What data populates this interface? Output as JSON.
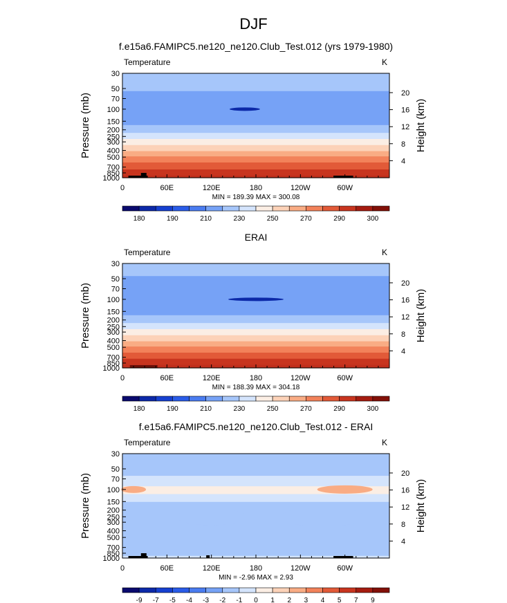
{
  "figure": {
    "title": "DJF"
  },
  "colors": {
    "main_scale": [
      "#0a0a6e",
      "#0c29a8",
      "#1640d0",
      "#2a5ce8",
      "#4a7cf0",
      "#76a2f6",
      "#a6c6fa",
      "#d4e4fc",
      "#fbeee4",
      "#fcd2b8",
      "#f9ac84",
      "#f2825a",
      "#e25a38",
      "#c8351f",
      "#a51c10",
      "#821008"
    ],
    "diff_scale": [
      "#0a0a6e",
      "#0c29a8",
      "#1640d0",
      "#2a5ce8",
      "#4a7cf0",
      "#76a2f6",
      "#a6c6fa",
      "#d4e4fc",
      "#fbeee4",
      "#fcd2b8",
      "#f9ac84",
      "#f2825a",
      "#e25a38",
      "#c8351f",
      "#a51c10",
      "#821008"
    ],
    "topography": "#000000"
  },
  "chart_data": [
    {
      "type": "heatmap",
      "title": "f.e15a6.FAMIPC5.ne120_ne120.Club_Test.012 (yrs 1979-1980)",
      "left_label": "Temperature",
      "right_label": "K",
      "ylabel": "Pressure (mb)",
      "y2label": "Height (km)",
      "y_ticks": [
        30,
        50,
        70,
        100,
        150,
        200,
        250,
        300,
        400,
        500,
        700,
        850,
        1000
      ],
      "y_scale": "log",
      "ylim": [
        1000,
        30
      ],
      "y2_ticks": [
        20,
        16,
        12,
        8,
        4
      ],
      "x_ticks": [
        "0",
        "60E",
        "120E",
        "180",
        "120W",
        "60W"
      ],
      "x_values": [
        0,
        60,
        120,
        180,
        240,
        300
      ],
      "xlim": [
        0,
        360
      ],
      "stats": "MIN = 189.39  MAX = 300.08",
      "min": 189.39,
      "max": 300.08,
      "profile": [
        [
          1000,
          295
        ],
        [
          850,
          285
        ],
        [
          700,
          278
        ],
        [
          500,
          262
        ],
        [
          400,
          250
        ],
        [
          300,
          236
        ],
        [
          250,
          226
        ],
        [
          200,
          215
        ],
        [
          150,
          207
        ],
        [
          100,
          201
        ],
        [
          70,
          207
        ],
        [
          50,
          211
        ],
        [
          30,
          216
        ]
      ],
      "colorbar_labels": [
        "180",
        "190",
        "210",
        "230",
        "250",
        "270",
        "290",
        "300"
      ],
      "colorbar_label_ticks": [
        1,
        3,
        5,
        7,
        9,
        11,
        13,
        15
      ],
      "colorbar_levels": [
        175,
        180,
        185,
        190,
        200,
        210,
        220,
        230,
        240,
        250,
        260,
        270,
        280,
        290,
        295,
        300
      ]
    },
    {
      "type": "heatmap",
      "title": "ERAI",
      "left_label": "Temperature",
      "right_label": "K",
      "ylabel": "Pressure (mb)",
      "y2label": "Height (km)",
      "y_ticks": [
        30,
        50,
        70,
        100,
        150,
        200,
        250,
        300,
        400,
        500,
        700,
        850,
        1000
      ],
      "y_scale": "log",
      "ylim": [
        1000,
        30
      ],
      "y2_ticks": [
        20,
        16,
        12,
        8,
        4
      ],
      "x_ticks": [
        "0",
        "60E",
        "120E",
        "180",
        "120W",
        "60W"
      ],
      "x_values": [
        0,
        60,
        120,
        180,
        240,
        300
      ],
      "xlim": [
        0,
        360
      ],
      "stats": "MIN = 188.39  MAX = 304.18",
      "min": 188.39,
      "max": 304.18,
      "profile": [
        [
          1000,
          297
        ],
        [
          850,
          286
        ],
        [
          700,
          278
        ],
        [
          500,
          262
        ],
        [
          400,
          250
        ],
        [
          300,
          236
        ],
        [
          250,
          226
        ],
        [
          200,
          216
        ],
        [
          150,
          206
        ],
        [
          100,
          200
        ],
        [
          70,
          204
        ],
        [
          50,
          209
        ],
        [
          30,
          214
        ]
      ],
      "colorbar_labels": [
        "180",
        "190",
        "210",
        "230",
        "250",
        "270",
        "290",
        "300"
      ],
      "colorbar_label_ticks": [
        1,
        3,
        5,
        7,
        9,
        11,
        13,
        15
      ],
      "colorbar_levels": [
        175,
        180,
        185,
        190,
        200,
        210,
        220,
        230,
        240,
        250,
        260,
        270,
        280,
        290,
        295,
        300
      ]
    },
    {
      "type": "heatmap",
      "title": "f.e15a6.FAMIPC5.ne120_ne120.Club_Test.012 - ERAI",
      "left_label": "Temperature",
      "right_label": "K",
      "ylabel": "Pressure (mb)",
      "y2label": "Height (km)",
      "y_ticks": [
        30,
        50,
        70,
        100,
        150,
        200,
        250,
        300,
        400,
        500,
        700,
        850,
        1000
      ],
      "y_scale": "log",
      "ylim": [
        1000,
        30
      ],
      "y2_ticks": [
        20,
        16,
        12,
        8,
        4
      ],
      "x_ticks": [
        "0",
        "60E",
        "120E",
        "180",
        "120W",
        "60W"
      ],
      "x_values": [
        0,
        60,
        120,
        180,
        240,
        300
      ],
      "xlim": [
        0,
        360
      ],
      "stats": "MIN = -2.96  MAX =  2.93",
      "min": -2.96,
      "max": 2.93,
      "profile": [
        [
          1000,
          -0.8
        ],
        [
          850,
          -1.2
        ],
        [
          700,
          -1.3
        ],
        [
          500,
          -1.5
        ],
        [
          400,
          -1.4
        ],
        [
          300,
          -1.6
        ],
        [
          250,
          -1.8
        ],
        [
          200,
          -1.7
        ],
        [
          150,
          -1.0
        ],
        [
          100,
          0.5
        ],
        [
          70,
          -0.9
        ],
        [
          50,
          -1.2
        ],
        [
          30,
          -1.5
        ]
      ],
      "colorbar_labels": [
        "-9",
        "-7",
        "-5",
        "-4",
        "-3",
        "-2",
        "-1",
        "0",
        "1",
        "2",
        "3",
        "4",
        "5",
        "7",
        "9"
      ],
      "colorbar_label_ticks": [
        1,
        2,
        3,
        4,
        5,
        6,
        7,
        8,
        9,
        10,
        11,
        12,
        13,
        14,
        15
      ],
      "colorbar_levels": [
        -9,
        -7,
        -5,
        -4,
        -3,
        -2,
        -1,
        0,
        1,
        2,
        3,
        4,
        5,
        7,
        9
      ]
    }
  ]
}
